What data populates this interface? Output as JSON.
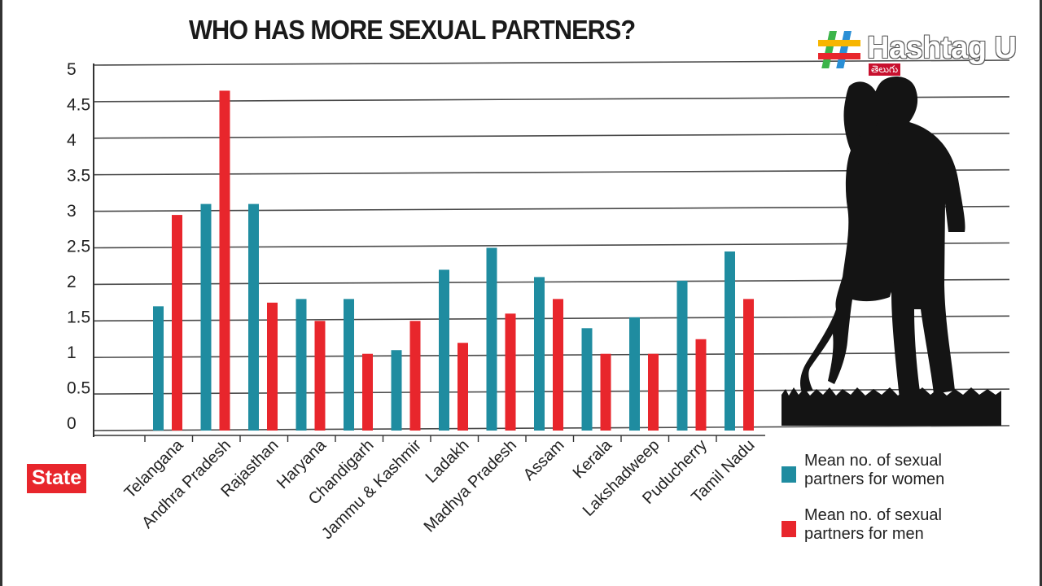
{
  "chart_data": {
    "type": "bar",
    "title": "WHO HAS MORE SEXUAL PARTNERS?",
    "xlabel": "State",
    "ylabel": "",
    "ylim": [
      0,
      5
    ],
    "yticks": [
      "5",
      "4.5",
      "4",
      "3.5",
      "3",
      "2.5",
      "2",
      "1.5",
      "1",
      "0.5",
      "0"
    ],
    "categories": [
      "Telangana",
      "Andhra Pradesh",
      "Rajasthan",
      "Haryana",
      "Chandigarh",
      "Jammu & Kashmir",
      "Ladakh",
      "Madhya Pradesh",
      "Assam",
      "Kerala",
      "Lakshadweep",
      "Puducherry",
      "Tamil Nadu"
    ],
    "series": [
      {
        "name": "Mean no. of sexual partners for women",
        "color": "#1f8ca0",
        "values": [
          1.7,
          3.1,
          3.1,
          1.8,
          1.8,
          1.1,
          2.2,
          2.5,
          2.1,
          1.4,
          1.55,
          2.05,
          2.45
        ]
      },
      {
        "name": "Mean no. of sexual partners for men",
        "color": "#e8262c",
        "values": [
          2.95,
          4.65,
          1.75,
          1.5,
          1.05,
          1.5,
          1.2,
          1.6,
          1.8,
          1.05,
          1.05,
          1.25,
          1.8
        ]
      }
    ],
    "grid": true,
    "legend": "bottom-right"
  },
  "branding": {
    "name": "Hashtag U",
    "sub": "తెలుగు",
    "hash_symbol": "#"
  },
  "badge": "State",
  "silhouette": "couple-silhouette",
  "colors": {
    "women": "#1f8ca0",
    "men": "#e8262c",
    "axis": "#333333",
    "grid": "#4a4a4a"
  }
}
